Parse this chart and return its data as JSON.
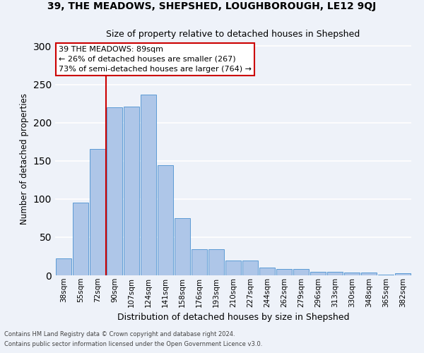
{
  "title": "39, THE MEADOWS, SHEPSHED, LOUGHBOROUGH, LE12 9QJ",
  "subtitle": "Size of property relative to detached houses in Shepshed",
  "xlabel": "Distribution of detached houses by size in Shepshed",
  "ylabel": "Number of detached properties",
  "categories": [
    "38sqm",
    "55sqm",
    "72sqm",
    "90sqm",
    "107sqm",
    "124sqm",
    "141sqm",
    "158sqm",
    "176sqm",
    "193sqm",
    "210sqm",
    "227sqm",
    "244sqm",
    "262sqm",
    "279sqm",
    "296sqm",
    "313sqm",
    "330sqm",
    "348sqm",
    "365sqm",
    "382sqm"
  ],
  "values": [
    22,
    95,
    165,
    220,
    221,
    237,
    144,
    75,
    34,
    34,
    19,
    19,
    10,
    8,
    8,
    5,
    5,
    4,
    4,
    1,
    3
  ],
  "bar_color": "#aec6e8",
  "bar_edge_color": "#5b9bd5",
  "annotation_text": "39 THE MEADOWS: 89sqm\n← 26% of detached houses are smaller (267)\n73% of semi-detached houses are larger (764) →",
  "vline_color": "#cc0000",
  "vline_x": 2.5,
  "ylim": [
    0,
    305
  ],
  "yticks": [
    0,
    50,
    100,
    150,
    200,
    250,
    300
  ],
  "background_color": "#eef2f9",
  "grid_color": "#ffffff",
  "footer_line1": "Contains HM Land Registry data © Crown copyright and database right 2024.",
  "footer_line2": "Contains public sector information licensed under the Open Government Licence v3.0."
}
